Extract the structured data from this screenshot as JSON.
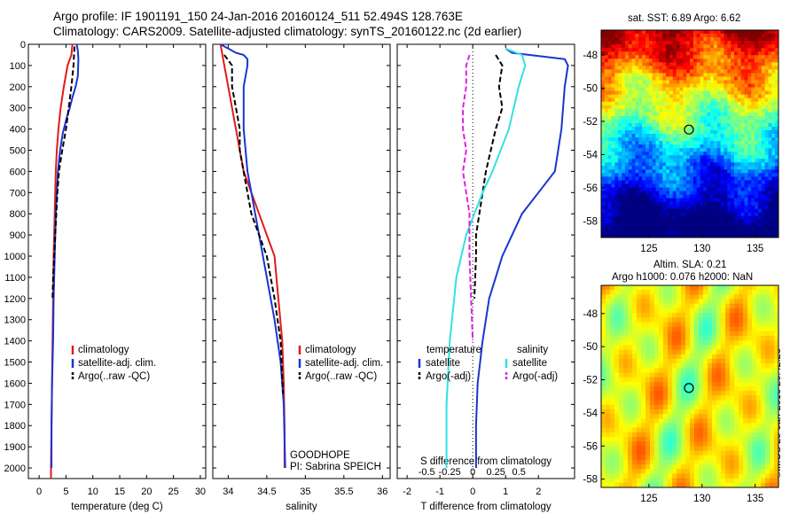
{
  "title_line1": "Argo profile: IF 1901191_150 24-Jan-2016 20160124_511 52.494S 128.763E",
  "title_line2": "Climatology: CARS2009. Satellite-adjusted climatology: synTS_20160122.nc (2d earlier)",
  "sst_title": "sat. SST: 6.89 Argo: 6.62",
  "sla_title1": "Altim. SLA: 0.21",
  "sla_title2": "Argo h1000: 0.076 h2000: NaN",
  "credit": "©IMOS 29-Jan-2016 20:42:26",
  "colors": {
    "climatology": "#e01b1b",
    "satellite": "#1a35d0",
    "argo": "#000000",
    "sat_salinity": "#33e0e0",
    "argo_salinity": "#e020e0"
  },
  "chart_data": [
    {
      "type": "line",
      "xlabel": "temperature (deg C)",
      "ylabel": "",
      "xlim": [
        -2,
        31
      ],
      "ylim": [
        2050,
        0
      ],
      "xticks": [
        0,
        5,
        10,
        15,
        20,
        25,
        30
      ],
      "yticks": [
        0,
        100,
        200,
        300,
        400,
        500,
        600,
        700,
        800,
        900,
        1000,
        1100,
        1200,
        1300,
        1400,
        1500,
        1600,
        1700,
        1800,
        1900,
        2000
      ],
      "legend": [
        "climatology",
        "satellite-adj. clim.",
        "Argo(..raw -QC)"
      ],
      "legend_position": "lower-center",
      "series": [
        {
          "name": "climatology",
          "x": [
            6.2,
            6.0,
            5.3,
            4.6,
            4.0,
            3.6,
            3.3,
            3.1,
            3.0,
            2.9,
            2.8,
            2.7,
            2.6,
            2.5,
            2.4,
            2.3,
            2.2,
            2.2
          ],
          "y": [
            0,
            50,
            100,
            200,
            300,
            400,
            500,
            600,
            700,
            800,
            900,
            1000,
            1200,
            1400,
            1600,
            1800,
            2000,
            2050
          ]
        },
        {
          "name": "satellite-adj. clim.",
          "x": [
            7.0,
            7.2,
            7.3,
            7.2,
            6.8,
            6.2,
            5.7,
            5.1,
            4.4,
            3.9,
            3.5,
            3.3,
            3.1,
            2.9,
            2.7,
            2.6,
            2.4,
            2.3,
            2.3
          ],
          "y": [
            0,
            30,
            70,
            150,
            200,
            250,
            300,
            350,
            420,
            500,
            600,
            700,
            800,
            1000,
            1200,
            1400,
            1600,
            1800,
            2000
          ]
        },
        {
          "name": "Argo(..raw -QC)",
          "x": [
            6.6,
            6.5,
            6.4,
            6.0,
            5.5,
            5.0,
            4.3,
            3.7,
            3.4,
            3.2,
            3.0,
            2.8,
            2.6,
            2.5
          ],
          "y": [
            10,
            50,
            100,
            200,
            300,
            400,
            500,
            600,
            700,
            800,
            900,
            1000,
            1100,
            1200
          ]
        }
      ]
    },
    {
      "type": "line",
      "xlabel": "salinity",
      "ylabel": "",
      "xlim": [
        33.8,
        36.1
      ],
      "ylim": [
        2050,
        0
      ],
      "xticks": [
        34,
        34.5,
        35,
        35.5,
        36
      ],
      "legend": [
        "climatology",
        "satellite-adj. clim.",
        "Argo(..raw -QC)"
      ],
      "legend_position": "lower-right",
      "annotations": [
        "GOODHOPE",
        "PI: Sabrina SPEICH"
      ],
      "series": [
        {
          "name": "climatology",
          "x": [
            33.9,
            33.95,
            34.0,
            34.05,
            34.1,
            34.15,
            34.2,
            34.3,
            34.4,
            34.5,
            34.6,
            34.65,
            34.7,
            34.72,
            34.73,
            34.73
          ],
          "y": [
            0,
            100,
            200,
            300,
            400,
            500,
            600,
            700,
            800,
            900,
            1000,
            1200,
            1400,
            1600,
            1800,
            2000
          ]
        },
        {
          "name": "satellite-adj. clim.",
          "x": [
            33.9,
            34.0,
            34.1,
            34.2,
            34.25,
            34.25,
            34.2,
            34.2,
            34.25,
            34.3,
            34.35,
            34.4,
            34.5,
            34.6,
            34.68,
            34.72,
            34.74
          ],
          "y": [
            0,
            20,
            40,
            50,
            70,
            100,
            200,
            400,
            600,
            700,
            800,
            900,
            1100,
            1300,
            1500,
            1700,
            2000
          ]
        },
        {
          "name": "Argo(..raw -QC)",
          "x": [
            33.95,
            34.05,
            34.05,
            34.1,
            34.15,
            34.15,
            34.25,
            34.3,
            34.4,
            34.5,
            34.6,
            34.68,
            34.71
          ],
          "y": [
            50,
            100,
            200,
            300,
            400,
            500,
            700,
            800,
            900,
            1000,
            1200,
            1400,
            1650
          ]
        }
      ]
    },
    {
      "type": "line",
      "xlabel": "T difference from climatology",
      "xlabel_secondary": "S difference from climatology",
      "ylabel": "",
      "xlim": [
        -2.3,
        3.1
      ],
      "ylim": [
        2050,
        0
      ],
      "xticks": [
        -2,
        -1,
        0,
        1,
        2
      ],
      "xticks_secondary": [
        -0.5,
        -0.25,
        0,
        0.25,
        0.5
      ],
      "legend_groups": [
        {
          "title": "temperature",
          "entries": [
            "satellite",
            "Argo(-adj)"
          ]
        },
        {
          "title": "salinity",
          "entries": [
            "satellite",
            "Argo(-adj)"
          ]
        }
      ],
      "legend_position": "lower-center",
      "series": [
        {
          "name": "temperature satellite",
          "x": [
            1.0,
            1.2,
            2.8,
            2.9,
            2.8,
            2.7,
            2.5,
            2.0,
            1.5,
            1.2,
            0.9,
            0.7,
            0.5,
            0.3,
            0.15,
            0.1,
            0.1
          ],
          "y": [
            20,
            40,
            70,
            100,
            200,
            400,
            600,
            700,
            800,
            900,
            1000,
            1100,
            1200,
            1400,
            1600,
            1800,
            2000
          ]
        },
        {
          "name": "temperature Argo(-adj)",
          "x": [
            0.7,
            0.9,
            0.8,
            0.9,
            0.7,
            0.4,
            0.3,
            0.2,
            0.1,
            0.1,
            0.05
          ],
          "y": [
            50,
            100,
            200,
            300,
            400,
            600,
            700,
            800,
            900,
            1000,
            1200
          ]
        },
        {
          "name": "salinity satellite",
          "x": [
            1.0,
            1.5,
            1.6,
            1.4,
            1.1,
            0.6,
            0.3,
            -0.2,
            -0.5,
            -0.7,
            -0.8,
            -0.8
          ],
          "y": [
            20,
            50,
            100,
            200,
            400,
            600,
            700,
            900,
            1100,
            1400,
            1700,
            2000
          ]
        },
        {
          "name": "salinity Argo(-adj)",
          "x": [
            -0.1,
            -0.2,
            -0.2,
            -0.3,
            -0.3,
            -0.2,
            -0.3,
            -0.2,
            -0.1,
            -0.1,
            -0.05,
            0.0
          ],
          "y": [
            50,
            100,
            200,
            300,
            400,
            500,
            600,
            700,
            800,
            1000,
            1200,
            1400
          ]
        }
      ]
    },
    {
      "type": "heatmap",
      "title": "sat. SST: 6.89 Argo: 6.62",
      "xlim": [
        120.5,
        137.2
      ],
      "ylim": [
        -59,
        -46.5
      ],
      "xticks": [
        125,
        130,
        135
      ],
      "yticks": [
        -48,
        -50,
        -52,
        -54,
        -56,
        -58
      ],
      "colormap": "jet",
      "marker": {
        "lon": 128.763,
        "lat": -52.494
      }
    },
    {
      "type": "heatmap",
      "title": "Altim. SLA: 0.21",
      "subtitle": "Argo h1000: 0.076 h2000: NaN",
      "xlim": [
        120.5,
        137.2
      ],
      "ylim": [
        -58.5,
        -46.3
      ],
      "xticks": [
        125,
        130,
        135
      ],
      "yticks": [
        -48,
        -50,
        -52,
        -54,
        -56,
        -58
      ],
      "colormap": "jet",
      "marker": {
        "lon": 128.763,
        "lat": -52.494
      }
    }
  ]
}
